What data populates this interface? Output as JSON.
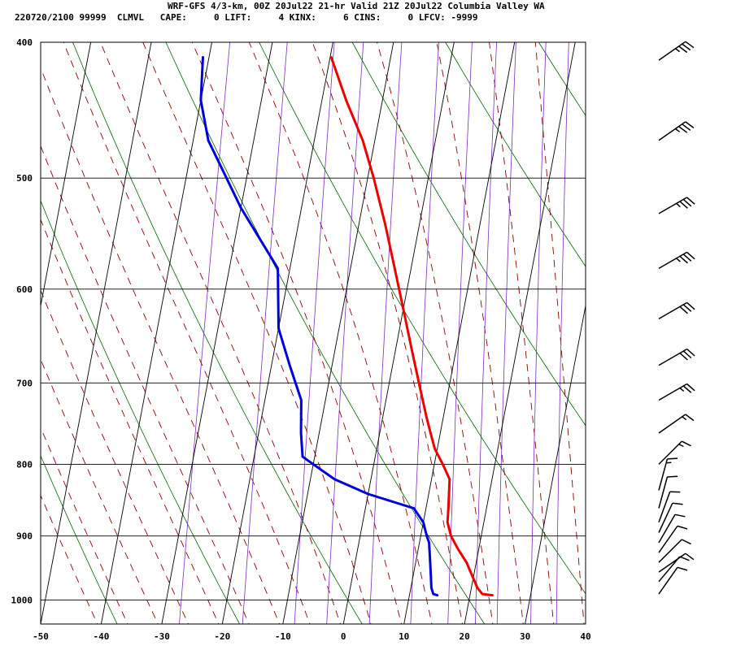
{
  "header": {
    "line1": "WRF-GFS 4/3-km, 00Z 20Jul22 21-hr Valid 21Z 20Jul22 Columbia Valley WA",
    "line2": "220720/2100 99999  CLMVL   CAPE:     0 LIFT:     4 KINX:     6 CINS:     0 LFCV: -9999"
  },
  "colors": {
    "temperature": "#ee0000",
    "dewpoint": "#0000dd",
    "isotherm_grid": "#000000",
    "dry_adiabat": "#006400",
    "moist_adiabat": "#8b0000",
    "mixing_ratio": "#7b2cbf"
  },
  "chart_data": {
    "type": "line",
    "title": "",
    "xlabel": "",
    "ylabel": "",
    "xlim": [
      -50,
      40
    ],
    "ylim": [
      1040,
      400
    ],
    "x_ticks": [
      -50,
      -40,
      -30,
      -20,
      -10,
      0,
      10,
      20,
      30,
      40
    ],
    "x_tick_labels": [
      "-50",
      "-40",
      "-30",
      "-20",
      "-10",
      "0",
      "10",
      "20",
      "30",
      "40"
    ],
    "y_ticks": [
      400,
      500,
      600,
      700,
      800,
      900,
      1000
    ],
    "y_tick_labels": [
      "400",
      "500",
      "600",
      "700",
      "800",
      "900",
      "1000"
    ],
    "grid": true,
    "series": [
      {
        "key": "temperature",
        "color": "#ee0000",
        "points": [
          {
            "p": 992,
            "t": 23.7
          },
          {
            "p": 990,
            "t": 22.0
          },
          {
            "p": 980,
            "t": 21.0
          },
          {
            "p": 960,
            "t": 19.7
          },
          {
            "p": 940,
            "t": 18.4
          },
          {
            "p": 920,
            "t": 16.6
          },
          {
            "p": 900,
            "t": 15.0
          },
          {
            "p": 880,
            "t": 14.0
          },
          {
            "p": 860,
            "t": 13.7
          },
          {
            "p": 820,
            "t": 13.0
          },
          {
            "p": 800,
            "t": 11.4
          },
          {
            "p": 780,
            "t": 9.6
          },
          {
            "p": 760,
            "t": 8.4
          },
          {
            "p": 740,
            "t": 7.2
          },
          {
            "p": 700,
            "t": 4.9
          },
          {
            "p": 660,
            "t": 2.5
          },
          {
            "p": 620,
            "t": 0.0
          },
          {
            "p": 580,
            "t": -2.7
          },
          {
            "p": 540,
            "t": -5.6
          },
          {
            "p": 500,
            "t": -9.0
          },
          {
            "p": 470,
            "t": -12.0
          },
          {
            "p": 440,
            "t": -16.0
          },
          {
            "p": 410,
            "t": -19.8
          }
        ]
      },
      {
        "key": "dewpoint",
        "color": "#0000dd",
        "points": [
          {
            "p": 992,
            "t": 14.6
          },
          {
            "p": 990,
            "t": 13.9
          },
          {
            "p": 980,
            "t": 13.4
          },
          {
            "p": 960,
            "t": 12.9
          },
          {
            "p": 940,
            "t": 12.4
          },
          {
            "p": 910,
            "t": 11.6
          },
          {
            "p": 900,
            "t": 11.0
          },
          {
            "p": 880,
            "t": 10.0
          },
          {
            "p": 860,
            "t": 8.0
          },
          {
            "p": 840,
            "t": 0.0
          },
          {
            "p": 820,
            "t": -6.0
          },
          {
            "p": 800,
            "t": -10.0
          },
          {
            "p": 790,
            "t": -12.0
          },
          {
            "p": 760,
            "t": -13.0
          },
          {
            "p": 720,
            "t": -14.0
          },
          {
            "p": 680,
            "t": -17.0
          },
          {
            "p": 640,
            "t": -20.0
          },
          {
            "p": 580,
            "t": -22.0
          },
          {
            "p": 525,
            "t": -30.0
          },
          {
            "p": 470,
            "t": -37.5
          },
          {
            "p": 440,
            "t": -40.0
          },
          {
            "p": 410,
            "t": -41.0
          }
        ]
      }
    ],
    "wind_barbs": [
      {
        "p": 412,
        "dir": 235,
        "speed": 35
      },
      {
        "p": 470,
        "dir": 235,
        "speed": 35
      },
      {
        "p": 530,
        "dir": 240,
        "speed": 35
      },
      {
        "p": 580,
        "dir": 240,
        "speed": 35
      },
      {
        "p": 630,
        "dir": 240,
        "speed": 30
      },
      {
        "p": 680,
        "dir": 240,
        "speed": 30
      },
      {
        "p": 720,
        "dir": 240,
        "speed": 25
      },
      {
        "p": 760,
        "dir": 235,
        "speed": 15
      },
      {
        "p": 800,
        "dir": 225,
        "speed": 15
      },
      {
        "p": 835,
        "dir": 195,
        "speed": 15
      },
      {
        "p": 860,
        "dir": 195,
        "speed": 10
      },
      {
        "p": 880,
        "dir": 200,
        "speed": 10
      },
      {
        "p": 895,
        "dir": 205,
        "speed": 10
      },
      {
        "p": 910,
        "dir": 210,
        "speed": 10
      },
      {
        "p": 925,
        "dir": 215,
        "speed": 10
      },
      {
        "p": 940,
        "dir": 225,
        "speed": 10
      },
      {
        "p": 955,
        "dir": 235,
        "speed": 10
      },
      {
        "p": 970,
        "dir": 220,
        "speed": 10
      },
      {
        "p": 990,
        "dir": 215,
        "speed": 10
      }
    ]
  }
}
